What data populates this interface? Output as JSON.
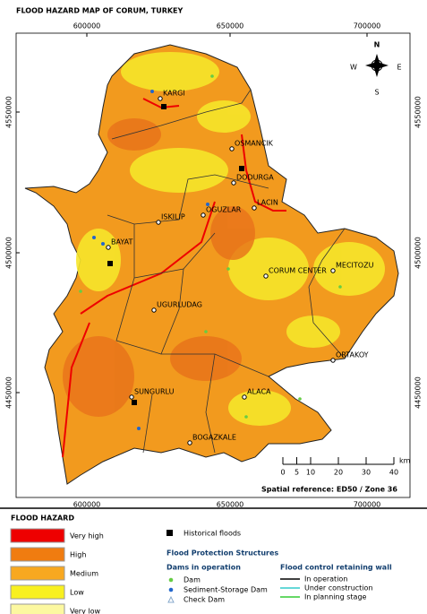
{
  "header": {
    "title": "FLOOD HAZARD MAP OF CORUM, TURKEY"
  },
  "map": {
    "x_ticks": [
      600000,
      650000,
      700000
    ],
    "y_ticks": [
      4550000,
      4500000,
      4450000
    ],
    "places": [
      "KARGI",
      "OSMANCIK",
      "DODURGA",
      "LACIN",
      "OGUZLAR",
      "ISKILIP",
      "BAYAT",
      "CORUM CENTER",
      "MECITOZU",
      "UGURLUDAG",
      "ORTAKOY",
      "ALACA",
      "SUNGURLU",
      "BOGAZKALE"
    ],
    "compass": {
      "north": "N",
      "east": "E",
      "south": "S",
      "west": "W"
    },
    "scale_bar": {
      "ticks": [
        0,
        5,
        10,
        20,
        30,
        40
      ],
      "unit": "km"
    },
    "spatial_reference": "Spatial reference: ED50 / Zone 36"
  },
  "legend": {
    "hazard_title": "FLOOD HAZARD",
    "hazard_classes": [
      {
        "label": "Very high",
        "color": "#ee0000"
      },
      {
        "label": "High",
        "color": "#f07c10"
      },
      {
        "label": "Medium",
        "color": "#f8a820"
      },
      {
        "label": "Low",
        "color": "#f8f020"
      },
      {
        "label": "Very low",
        "color": "#fcf8a0"
      }
    ],
    "historical_floods": "Historical floods",
    "structures_title": "Flood Protection Structures",
    "dams_title": "Dams in operation",
    "dams": [
      {
        "label": "Dam",
        "color": "#66cc44"
      },
      {
        "label": "Sediment-Storage Dam",
        "color": "#2266cc"
      },
      {
        "label": "Check Dam",
        "color": "#88aacc"
      }
    ],
    "walls_title": "Flood control retaining wall",
    "walls": [
      {
        "label": "In operation",
        "color": "#000000"
      },
      {
        "label": "Under construction",
        "color": "#33cccc"
      },
      {
        "label": "In planning stage",
        "color": "#33cc33"
      }
    ]
  }
}
